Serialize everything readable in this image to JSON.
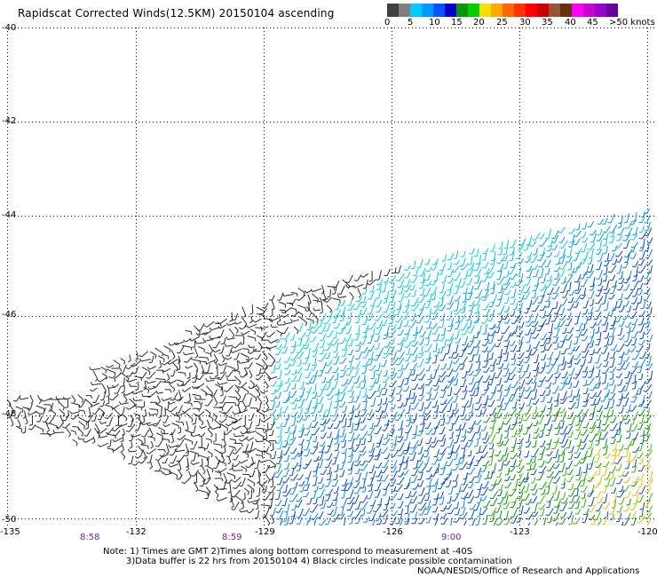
{
  "title": "Rapidscat Corrected Winds(12.5KM) 20150104 ascending",
  "colorbar": {
    "colors": [
      "#404040",
      "#7f7f7f",
      "#00ccff",
      "#0099ff",
      "#0055ff",
      "#0000cc",
      "#009900",
      "#00cc00",
      "#ffdd00",
      "#ffaa00",
      "#ff6600",
      "#ff3300",
      "#ff0000",
      "#cc0000",
      "#995533",
      "#663311",
      "#ff00ff",
      "#cc00cc",
      "#9900cc",
      "#660099"
    ],
    "labels": [
      "0",
      "5",
      "10",
      "15",
      "20",
      "25",
      "30",
      "35",
      "40",
      "45",
      ">50 knots"
    ]
  },
  "axes": {
    "y_labels": [
      "-40",
      "-42",
      "-44",
      "-46",
      "-48",
      "-50"
    ],
    "x_labels": [
      "-135",
      "-132",
      "-129",
      "-126",
      "-123",
      "-120"
    ],
    "time_labels": [
      "8:58",
      "8:59",
      "9:00"
    ],
    "lon_range": [
      -135,
      -120
    ],
    "lat_range": [
      -40,
      -50
    ]
  },
  "notes": {
    "line1": "Note: 1) Times are GMT 2)Times along bottom correspond to measurement at -40S",
    "line2": "3)Data buffer is 22 hrs from 20150104 4) Black circles indicate possible contamination",
    "line3": "NOAA/NESDIS/Office of Research and Applications"
  }
}
